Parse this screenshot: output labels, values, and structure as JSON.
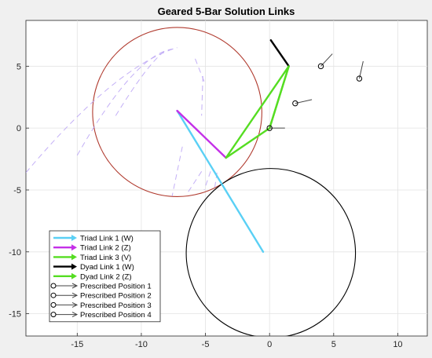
{
  "chart_data": {
    "type": "line",
    "title": "Geared 5-Bar Solution Links",
    "xlim": [
      -19,
      12.3
    ],
    "ylim": [
      -16.8,
      8.7
    ],
    "xticks": [
      -15,
      -10,
      -5,
      0,
      5,
      10
    ],
    "yticks": [
      5,
      0,
      -5,
      -10,
      -15
    ],
    "grid": true,
    "legend_placement": "bottom-left",
    "circles": [
      {
        "name": "triad-circle",
        "center": [
          -7.2,
          1.3
        ],
        "radius": 6.6,
        "color": "#b03a2e"
      },
      {
        "name": "dyad-circle",
        "center": [
          0.1,
          -10.1
        ],
        "radius": 6.6,
        "color": "#000000"
      }
    ],
    "series": [
      {
        "name": "Triad Link 1 (W)",
        "color": "#5ad0f5",
        "points": [
          [
            -0.5,
            -10.0
          ],
          [
            -7.2,
            1.4
          ]
        ]
      },
      {
        "name": "Triad Link 2 (Z)",
        "color": "#c430e8",
        "points": [
          [
            -7.2,
            1.4
          ],
          [
            -3.4,
            -2.4
          ]
        ]
      },
      {
        "name": "Triad Link 3 (V)",
        "color": "#55dd22",
        "points": [
          [
            -3.4,
            -2.4
          ],
          [
            1.5,
            5.0
          ],
          [
            0.0,
            0.0
          ],
          [
            -3.4,
            -2.4
          ],
          [
            1.5,
            5.0
          ]
        ]
      },
      {
        "name": "Dyad Link 1 (W)",
        "color": "#000000",
        "points": [
          [
            1.5,
            5.0
          ],
          [
            0.1,
            7.1
          ]
        ]
      },
      {
        "name": "Dyad Link 2 (Z)",
        "color": "#55dd22",
        "points": [
          [
            0.0,
            0.0
          ],
          [
            1.5,
            5.0
          ]
        ]
      },
      {
        "name": "Prescribed Position 1",
        "color": "#000000",
        "marker": [
          0.0,
          0.0
        ],
        "direction": [
          1.2,
          0.0
        ]
      },
      {
        "name": "Prescribed Position 2",
        "color": "#000000",
        "marker": [
          2.0,
          2.0
        ],
        "direction": [
          1.3,
          0.3
        ]
      },
      {
        "name": "Prescribed Position 3",
        "color": "#000000",
        "marker": [
          4.0,
          5.0
        ],
        "direction": [
          0.9,
          1.0
        ]
      },
      {
        "name": "Prescribed Position 4",
        "color": "#000000",
        "marker": [
          7.0,
          4.0
        ],
        "direction": [
          0.3,
          1.4
        ]
      }
    ]
  }
}
